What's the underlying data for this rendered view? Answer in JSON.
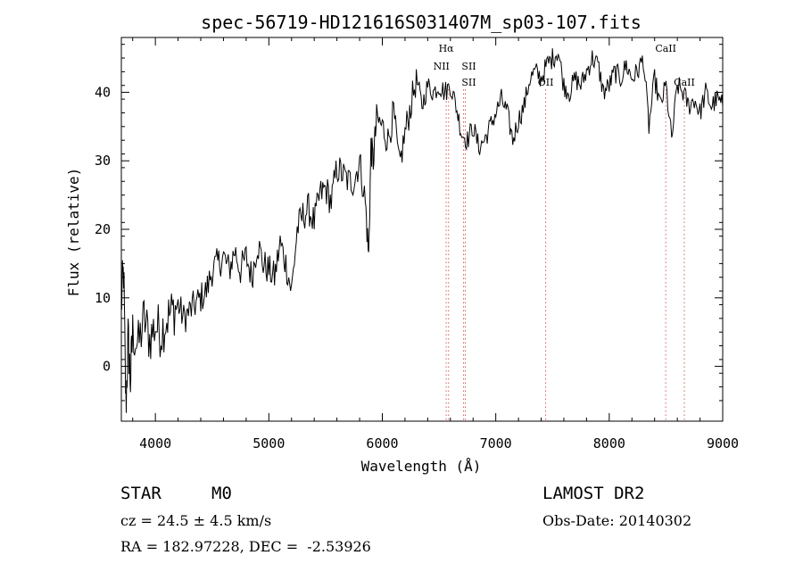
{
  "chart_data": {
    "type": "line",
    "title": "spec-56719-HD121616S031407M_sp03-107.fits",
    "xlabel": "Wavelength (Å)",
    "ylabel": "Flux (relative)",
    "xlim": [
      3700,
      9000
    ],
    "ylim": [
      -8,
      48
    ],
    "xticks": [
      4000,
      5000,
      6000,
      7000,
      8000,
      9000
    ],
    "yticks": [
      0,
      10,
      20,
      30,
      40
    ],
    "grid": false,
    "series": [
      {
        "x": [
          3700,
          3720,
          3740,
          3760,
          3780,
          3800,
          3850,
          3900,
          3950,
          4000,
          4050,
          4100,
          4150,
          4200,
          4250,
          4300,
          4350,
          4400,
          4450,
          4500,
          4550,
          4600,
          4650,
          4700,
          4750,
          4800,
          4850,
          4900,
          4950,
          5000,
          5050,
          5100,
          5150,
          5200,
          5250,
          5300,
          5350,
          5400,
          5450,
          5500,
          5550,
          5600,
          5650,
          5700,
          5750,
          5800,
          5850,
          5880,
          5900,
          5920,
          5950,
          6000,
          6050,
          6100,
          6150,
          6200,
          6250,
          6300,
          6350,
          6400,
          6450,
          6500,
          6550,
          6600,
          6650,
          6700,
          6750,
          6800,
          6850,
          6900,
          6950,
          7000,
          7050,
          7100,
          7150,
          7200,
          7250,
          7300,
          7350,
          7400,
          7450,
          7500,
          7550,
          7600,
          7650,
          7700,
          7750,
          7800,
          7850,
          7900,
          7950,
          8000,
          8050,
          8100,
          8150,
          8200,
          8250,
          8300,
          8350,
          8400,
          8450,
          8500,
          8550,
          8600,
          8650,
          8700,
          8750,
          8800,
          8850,
          8900,
          8950,
          9000
        ],
        "y": [
          9,
          14,
          -6,
          4,
          -2,
          5,
          3,
          7,
          4,
          6,
          5,
          7,
          8,
          9,
          7,
          8,
          9,
          10,
          11,
          14,
          15,
          16,
          14,
          17,
          14,
          16,
          13,
          18,
          15,
          14,
          13,
          18,
          15,
          11,
          20,
          22,
          23,
          21,
          25,
          26,
          24,
          29,
          28,
          27,
          27,
          30,
          24,
          16,
          32,
          30,
          36,
          35,
          33,
          37,
          29,
          34,
          38,
          42,
          38,
          41,
          40,
          41,
          40,
          41,
          38,
          34,
          33,
          35,
          32,
          33,
          35,
          37,
          39,
          37,
          33,
          36,
          38,
          42,
          43,
          42,
          44,
          45,
          46,
          41,
          40,
          42,
          41,
          43,
          45,
          44,
          40,
          41,
          43,
          42,
          44,
          42,
          43,
          45,
          35,
          42,
          38,
          41,
          33,
          41,
          40,
          38,
          39,
          37,
          40,
          38,
          39,
          38
        ]
      }
    ],
    "lines": [
      {
        "label": "Hα",
        "x": 6563
      },
      {
        "label": "NII",
        "x": 6584
      },
      {
        "label": "SII",
        "x": 6716
      },
      {
        "label": "SII",
        "x": 6731
      },
      {
        "label": "OII",
        "x": 7440
      },
      {
        "label": "CaII",
        "x": 8498
      },
      {
        "label": "CaII",
        "x": 8662
      }
    ]
  },
  "info": {
    "object_type": "STAR",
    "subclass": "M0",
    "velocity": "cz = 24.5 ± 4.5 km/s",
    "coords": "RA = 182.97228, DEC =  -2.53926",
    "survey": "LAMOST DR2",
    "obs_date": "Obs-Date: 20140302"
  },
  "colors": {
    "spectrum": "#000000",
    "line_markers": "#e05a5a",
    "axes": "#000000"
  }
}
